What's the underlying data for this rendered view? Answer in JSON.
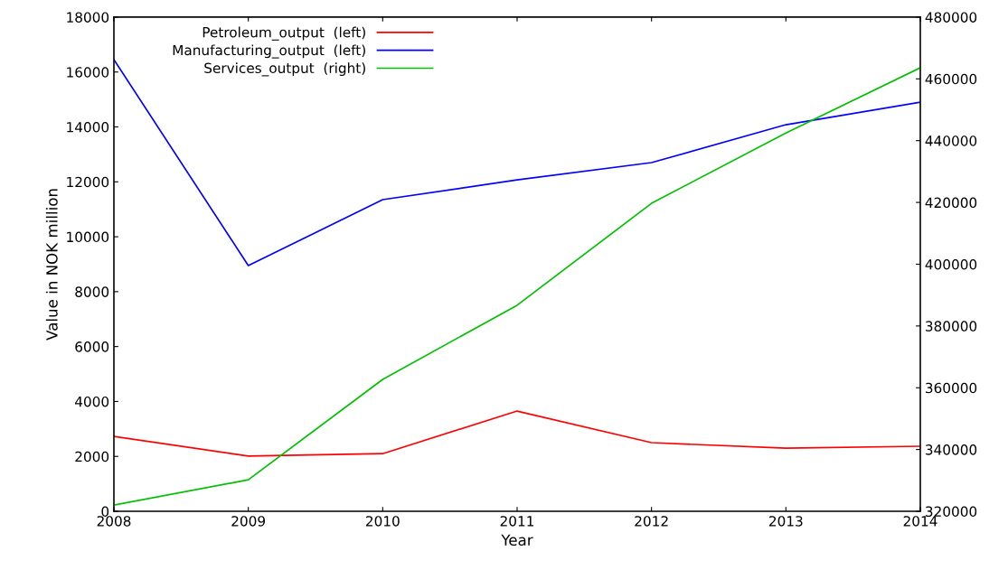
{
  "chart_data": {
    "type": "line",
    "xlabel": "Year",
    "ylabel": "Value in NOK million",
    "x": [
      2008,
      2009,
      2010,
      2011,
      2012,
      2013,
      2014
    ],
    "xlim": [
      2008,
      2014
    ],
    "xticks": [
      2008,
      2009,
      2010,
      2011,
      2012,
      2013,
      2014
    ],
    "ylim": [
      0,
      18000
    ],
    "yticks": [
      0,
      2000,
      4000,
      6000,
      8000,
      10000,
      12000,
      14000,
      16000,
      18000
    ],
    "y2lim": [
      320000,
      480000
    ],
    "y2ticks": [
      320000,
      340000,
      360000,
      380000,
      400000,
      420000,
      440000,
      460000,
      480000
    ],
    "series": [
      {
        "name": "Petroleum_output  (left)",
        "color": "#ff0000",
        "values": [
          2730,
          2010,
          2100,
          3650,
          2500,
          2300,
          2370
        ]
      },
      {
        "name": "Manufacturing_output  (left)",
        "color": "#0000ff",
        "values": [
          16450,
          8950,
          11350,
          12070,
          12700,
          14080,
          14900
        ]
      },
      {
        "name": "Services_output  (right)",
        "color": "#00c000",
        "axis": "y2",
        "values": [
          322000,
          330200,
          362700,
          386700,
          419700,
          442500,
          463600
        ]
      }
    ],
    "legend": "upper left",
    "grid": false,
    "marker": "none",
    "line_style": "solid"
  }
}
